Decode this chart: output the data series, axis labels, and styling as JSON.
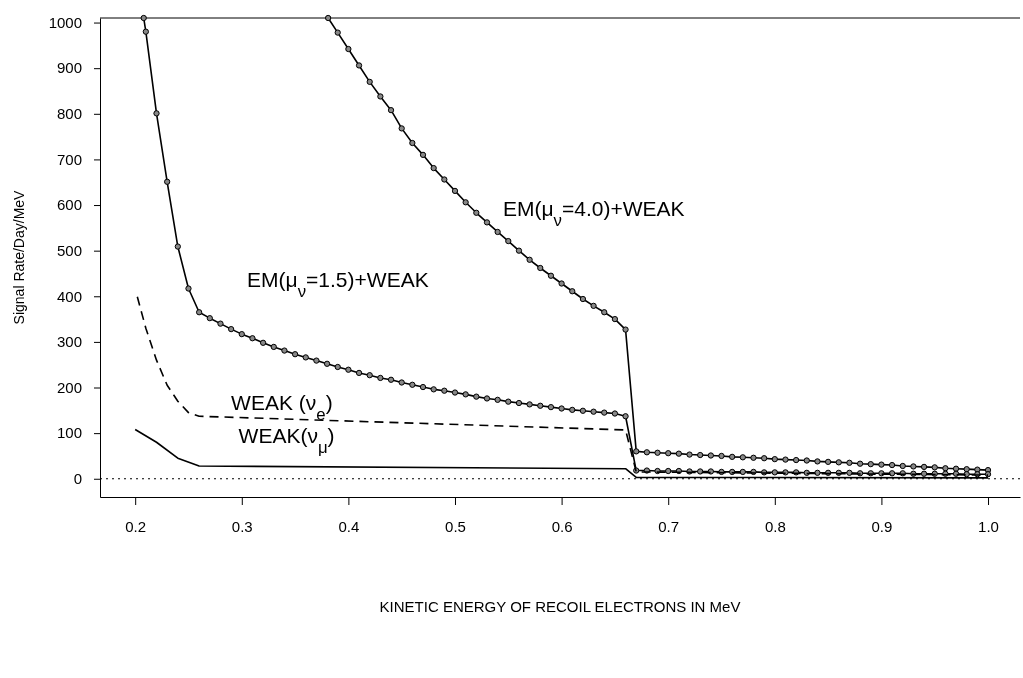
{
  "chart_data": {
    "type": "line",
    "xlabel": "KINETIC ENERGY OF RECOIL ELECTRONS IN MeV",
    "ylabel": "Signal Rate/Day/MeV",
    "xlim": [
      0.167,
      1.03
    ],
    "ylim": [
      -40,
      1010
    ],
    "xticks": [
      0.2,
      0.3,
      0.4,
      0.5,
      0.6,
      0.7,
      0.8,
      0.9,
      {
        "value": 1,
        "label": "1.0"
      }
    ],
    "yticks": [
      0,
      100,
      200,
      300,
      400,
      500,
      600,
      700,
      800,
      900,
      1000
    ],
    "grid": false,
    "ref_lines": [
      {
        "axis": "y",
        "value": 0,
        "line_style": "dotted",
        "color": "#000000"
      }
    ],
    "series": [
      {
        "name": "EM(μ$_{ν}$=4.0)+WEAK",
        "color": "#000000",
        "marker": "circle",
        "line_style": "solid",
        "x": [
          0.381,
          0.39,
          0.4,
          0.41,
          0.42,
          0.43,
          0.44,
          0.45,
          0.46,
          0.47,
          0.48,
          0.49,
          0.5,
          0.51,
          0.52,
          0.53,
          0.54,
          0.55,
          0.56,
          0.57,
          0.58,
          0.59,
          0.6,
          0.61,
          0.62,
          0.63,
          0.64,
          0.65,
          0.66,
          0.67,
          0.68,
          0.69,
          0.7,
          0.71,
          0.72,
          0.73,
          0.74,
          0.75,
          0.76,
          0.77,
          0.78,
          0.79,
          0.8,
          0.81,
          0.82,
          0.83,
          0.84,
          0.85,
          0.86,
          0.87,
          0.88,
          0.89,
          0.9,
          0.91,
          0.92,
          0.93,
          0.94,
          0.95,
          0.96,
          0.97,
          0.98,
          0.99,
          1.0
        ],
        "values": [
          1010,
          978,
          942,
          906,
          870,
          838,
          808,
          768,
          736,
          710,
          681,
          656,
          631,
          606,
          583,
          562,
          541,
          521,
          500,
          480,
          462,
          445,
          428,
          411,
          394,
          379,
          365,
          350,
          327,
          60,
          58,
          57,
          56,
          55,
          53,
          52,
          51,
          50,
          48,
          47,
          46,
          45,
          43,
          42,
          41,
          40,
          38,
          37,
          36,
          35,
          33,
          32,
          31,
          30,
          28,
          27,
          26,
          25,
          23,
          22,
          21,
          20,
          19
        ]
      },
      {
        "name": "EM(μ$_{ν}$=1.5)+WEAK",
        "color": "#000000",
        "marker": "circle",
        "line_style": "solid",
        "x": [
          0.208,
          0.21,
          0.22,
          0.23,
          0.24,
          0.25,
          0.26,
          0.27,
          0.28,
          0.29,
          0.3,
          0.31,
          0.32,
          0.33,
          0.34,
          0.35,
          0.36,
          0.37,
          0.38,
          0.39,
          0.4,
          0.41,
          0.42,
          0.43,
          0.44,
          0.45,
          0.46,
          0.47,
          0.48,
          0.49,
          0.5,
          0.51,
          0.52,
          0.53,
          0.54,
          0.55,
          0.56,
          0.57,
          0.58,
          0.59,
          0.6,
          0.61,
          0.62,
          0.63,
          0.64,
          0.65,
          0.66,
          0.67,
          0.68,
          0.69,
          0.7,
          0.71,
          0.72,
          0.73,
          0.74,
          0.75,
          0.76,
          0.77,
          0.78,
          0.79,
          0.8,
          0.81,
          0.82,
          0.83,
          0.84,
          0.85,
          0.86,
          0.87,
          0.88,
          0.89,
          0.9,
          0.91,
          0.92,
          0.93,
          0.94,
          0.95,
          0.96,
          0.97,
          0.98,
          0.99,
          1.0
        ],
        "values": [
          1010,
          980,
          801,
          651,
          509,
          417,
          365,
          352,
          340,
          328,
          317,
          308,
          298,
          289,
          281,
          273,
          266,
          259,
          252,
          245,
          239,
          232,
          227,
          221,
          217,
          211,
          206,
          201,
          196,
          193,
          189,
          185,
          180,
          176,
          173,
          169,
          166,
          163,
          160,
          157,
          154,
          151,
          149,
          147,
          145,
          143,
          137,
          18,
          18,
          17,
          17,
          17,
          16,
          16,
          16,
          15,
          15,
          15,
          15,
          14,
          14,
          14,
          14,
          13,
          13,
          13,
          13,
          13,
          12,
          12,
          12,
          12,
          12,
          11,
          11,
          11,
          11,
          11,
          10,
          10,
          10
        ]
      },
      {
        "name": "WEAK (ν$_{e}$)",
        "color": "#000000",
        "marker": "none",
        "line_style": "dashed",
        "x": [
          0.202,
          0.21,
          0.22,
          0.23,
          0.24,
          0.25,
          0.26,
          0.66,
          0.67,
          1.0
        ],
        "values": [
          399,
          330,
          260,
          205,
          170,
          145,
          137,
          107,
          15,
          8
        ]
      },
      {
        "name": "WEAK(ν$_{μ}$)",
        "color": "#000000",
        "marker": "none",
        "line_style": "solid",
        "x": [
          0.2,
          0.22,
          0.24,
          0.26,
          0.66,
          0.67,
          1.0
        ],
        "values": [
          108,
          80,
          45,
          28,
          22,
          3,
          2
        ]
      }
    ]
  }
}
